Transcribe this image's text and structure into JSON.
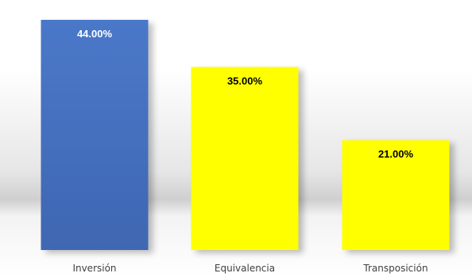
{
  "chart_data": {
    "type": "bar",
    "title": "",
    "xlabel": "",
    "ylabel": "",
    "categories": [
      "Inversión",
      "Equivalencia",
      "Transposición"
    ],
    "values": [
      44,
      35,
      21
    ],
    "data_labels": [
      "44.00%",
      "35.00%",
      "21.00%"
    ],
    "ylim": [
      0,
      50
    ],
    "grid": false,
    "legend": "none",
    "bar_colors": [
      "#4472C4",
      "#FFFF00",
      "#FFFF00"
    ],
    "label_colors": [
      "#FFFFFF",
      "#000000",
      "#000000"
    ]
  }
}
